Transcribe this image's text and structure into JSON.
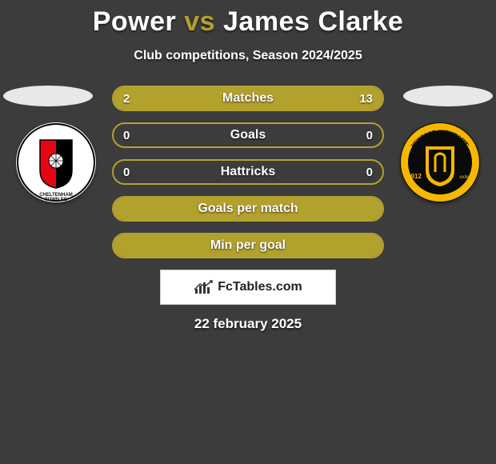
{
  "title": {
    "p1": "Power",
    "vs": "vs",
    "p2": "James Clarke"
  },
  "subtitle": "Club competitions, Season 2024/2025",
  "left_club": {
    "name": "Cheltenham Town FC",
    "primary": "#e30613",
    "secondary": "#000000",
    "bg": "#ffffff"
  },
  "right_club": {
    "name": "Newport County AFC",
    "founded": "1912",
    "motto": "exiles",
    "primary": "#f5b700",
    "secondary": "#000000",
    "bg": "#0a0a0a"
  },
  "accent_color": "#b3a12e",
  "background_color": "#3c3c3c",
  "oval_color": "#e8e8e8",
  "bars": [
    {
      "label": "Matches",
      "left": "2",
      "right": "13",
      "left_pct": 13,
      "right_pct": 87
    },
    {
      "label": "Goals",
      "left": "0",
      "right": "0",
      "left_pct": 0,
      "right_pct": 0
    },
    {
      "label": "Hattricks",
      "left": "0",
      "right": "0",
      "left_pct": 0,
      "right_pct": 0
    },
    {
      "label": "Goals per match",
      "left": "",
      "right": "",
      "left_pct": 100,
      "right_pct": 0
    },
    {
      "label": "Min per goal",
      "left": "",
      "right": "",
      "left_pct": 100,
      "right_pct": 0
    }
  ],
  "site_brand": "FcTables.com",
  "footer_date": "22 february 2025"
}
